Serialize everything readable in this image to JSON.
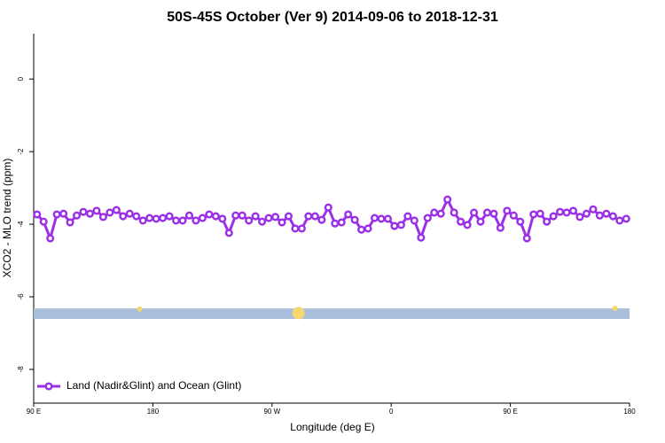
{
  "chart_data": {
    "type": "line",
    "title": "50S-45S October (Ver 9)   2014-09-06 to 2018-12-31",
    "x_label": "Longitude (deg E)",
    "y_label": "XCO2 - MLO trend (ppm)",
    "xlim": [
      90,
      540
    ],
    "ylim": [
      -8.93,
      1.25
    ],
    "xticks": [
      {
        "value": 90,
        "label": "90 E"
      },
      {
        "value": 180,
        "label": "180"
      },
      {
        "value": 270,
        "label": "90 W"
      },
      {
        "value": 360,
        "label": "0"
      },
      {
        "value": 450,
        "label": "90 E"
      },
      {
        "value": 540,
        "label": "180"
      }
    ],
    "yticks": [
      0,
      -2,
      -4,
      -6,
      -8
    ],
    "legend_position": "lower left",
    "x": [
      92.5,
      97.5,
      102.5,
      107.5,
      112.5,
      117.5,
      122.5,
      127.5,
      132.5,
      137.5,
      142.5,
      147.5,
      152.5,
      157.5,
      162.5,
      167.5,
      172.5,
      177.5,
      182.5,
      187.5,
      192.5,
      197.5,
      202.5,
      207.5,
      212.5,
      217.5,
      222.5,
      227.5,
      232.5,
      237.5,
      242.5,
      247.5,
      252.5,
      257.5,
      262.5,
      267.5,
      272.5,
      277.5,
      282.5,
      287.5,
      292.5,
      297.5,
      302.5,
      307.5,
      312.5,
      317.5,
      322.5,
      327.5,
      332.5,
      337.5,
      342.5,
      347.5,
      352.5,
      357.5,
      362.5,
      367.5,
      372.5,
      377.5,
      382.5,
      387.5,
      392.5,
      397.5,
      402.5,
      407.5,
      412.5,
      417.5,
      422.5,
      427.5,
      432.5,
      437.5,
      442.5,
      447.5,
      452.5,
      457.5,
      462.5,
      467.5,
      472.5,
      477.5,
      482.5,
      487.5,
      492.5,
      497.5,
      502.5,
      507.5,
      512.5,
      517.5,
      522.5,
      527.5,
      532.5,
      537.5
    ],
    "series": [
      {
        "name": "Land (Nadir&Glint) and Ocean (Glint)",
        "color": "#9b30e6",
        "values": [
          -3.73,
          -3.93,
          -4.39,
          -3.73,
          -3.71,
          -3.95,
          -3.76,
          -3.66,
          -3.71,
          -3.63,
          -3.8,
          -3.68,
          -3.61,
          -3.78,
          -3.71,
          -3.78,
          -3.9,
          -3.83,
          -3.85,
          -3.83,
          -3.78,
          -3.9,
          -3.9,
          -3.76,
          -3.9,
          -3.83,
          -3.73,
          -3.78,
          -3.85,
          -4.24,
          -3.76,
          -3.76,
          -3.9,
          -3.78,
          -3.93,
          -3.83,
          -3.8,
          -3.95,
          -3.78,
          -4.12,
          -4.12,
          -3.78,
          -3.78,
          -3.88,
          -3.54,
          -3.98,
          -3.95,
          -3.73,
          -3.88,
          -4.15,
          -4.12,
          -3.83,
          -3.85,
          -3.85,
          -4.05,
          -4.02,
          -3.78,
          -3.9,
          -4.37,
          -3.83,
          -3.68,
          -3.71,
          -3.32,
          -3.68,
          -3.93,
          -4.02,
          -3.68,
          -3.93,
          -3.68,
          -3.71,
          -4.1,
          -3.63,
          -3.76,
          -3.93,
          -4.39,
          -3.73,
          -3.71,
          -3.93,
          -3.78,
          -3.66,
          -3.68,
          -3.63,
          -3.8,
          -3.71,
          -3.59,
          -3.76,
          -3.71,
          -3.78,
          -3.9,
          -3.85
        ]
      }
    ],
    "ocean_band": {
      "color": "#a9bedb",
      "ylim": [
        -6.61,
        -6.32
      ]
    },
    "highlights": {
      "color": "#f5d76e",
      "x": [
        170,
        290,
        529
      ],
      "values": [
        -6.34,
        -6.45,
        -6.32
      ],
      "sizes": [
        3,
        7,
        3
      ]
    }
  }
}
